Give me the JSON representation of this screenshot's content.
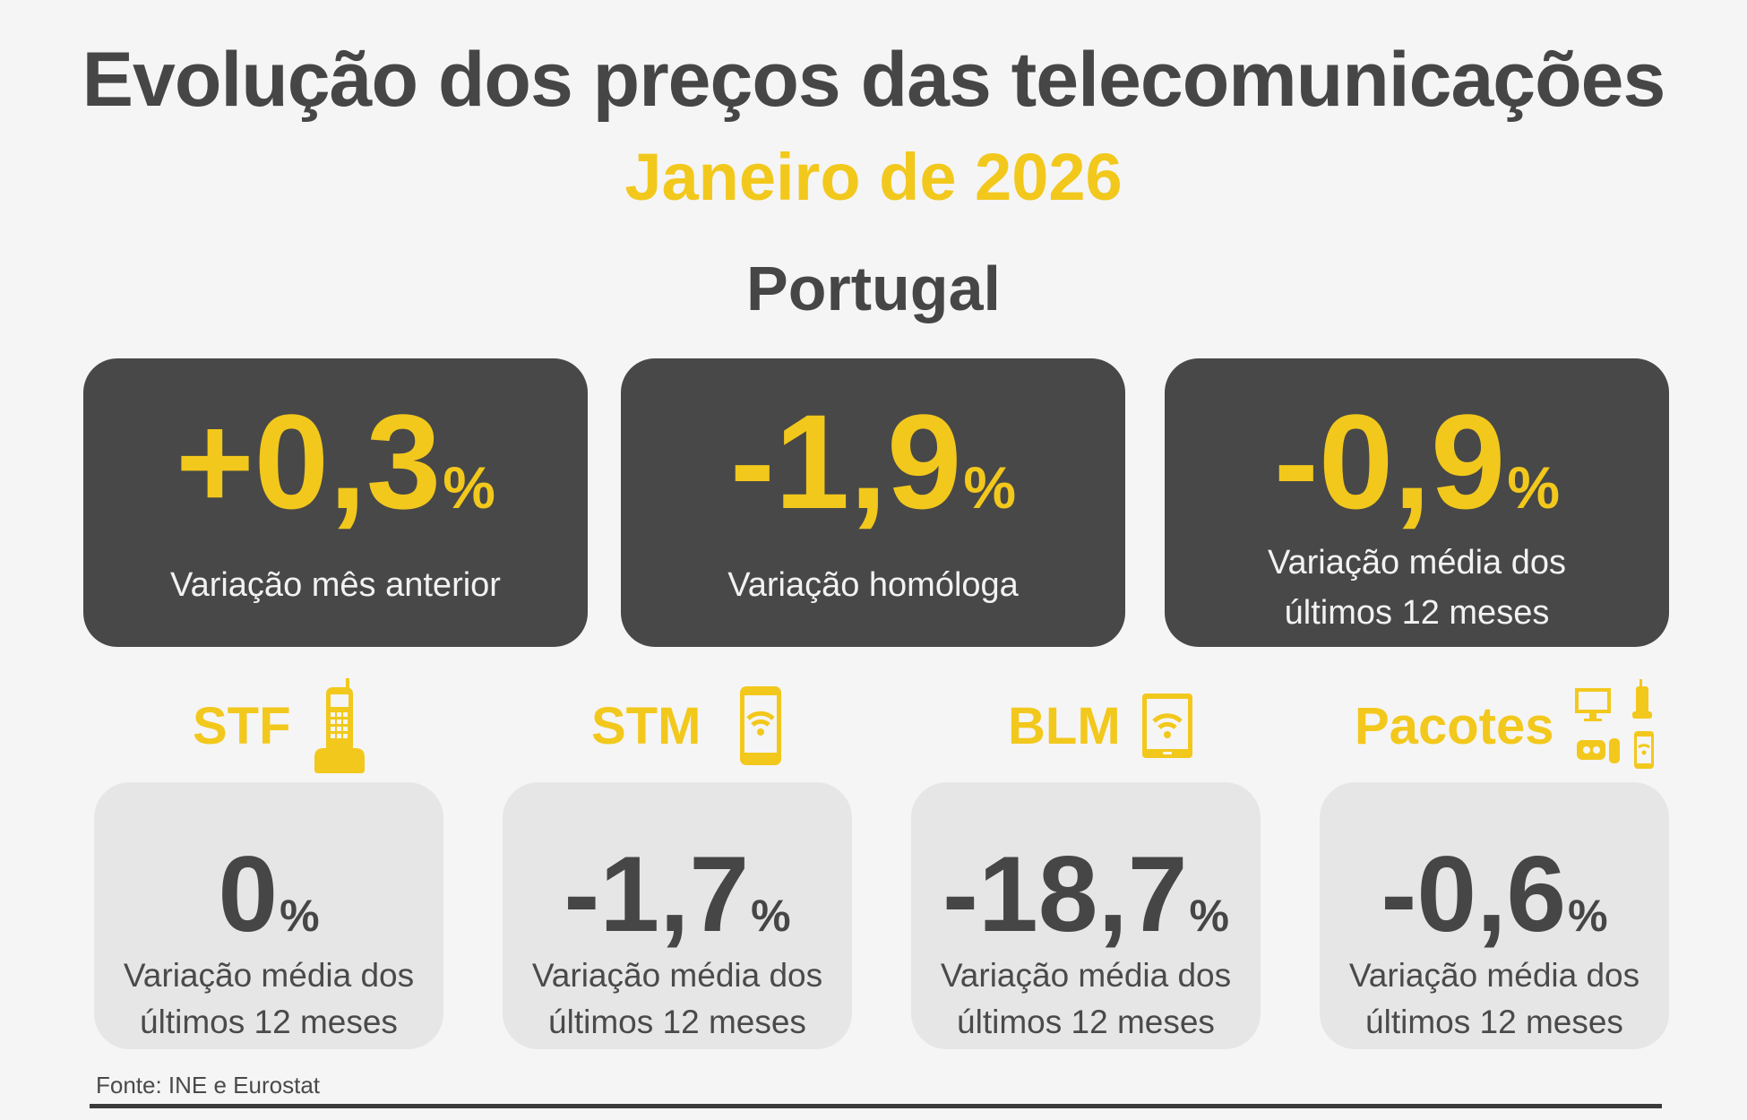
{
  "header": {
    "title": "Evolução dos preços das telecomunicações",
    "subtitle": "Janeiro de 2026",
    "region": "Portugal"
  },
  "summary_cards": [
    {
      "value": "+0,3",
      "unit": "%",
      "label": "Variação mês anterior"
    },
    {
      "value": "-1,9",
      "unit": "%",
      "label": "Variação homóloga"
    },
    {
      "value": "-0,9",
      "unit": "%",
      "label_line1": "Variação média dos",
      "label_line2": "últimos 12 meses"
    }
  ],
  "categories": [
    {
      "name": "STF",
      "icon": "cordless-phone-icon",
      "value": "0",
      "unit": "%",
      "label_line1": "Variação média dos",
      "label_line2": "últimos 12 meses"
    },
    {
      "name": "STM",
      "icon": "smartphone-wifi-icon",
      "value": "-1,7",
      "unit": "%",
      "label_line1": "Variação média dos",
      "label_line2": "últimos 12 meses"
    },
    {
      "name": "BLM",
      "icon": "tablet-wifi-icon",
      "value": "-18,7",
      "unit": "%",
      "label_line1": "Variação média dos",
      "label_line2": "últimos 12 meses"
    },
    {
      "name": "Pacotes",
      "icon": "bundle-devices-icon",
      "value": "-0,6",
      "unit": "%",
      "label_line1": "Variação média dos",
      "label_line2": "últimos 12 meses"
    }
  ],
  "footer": {
    "source": "Fonte: INE e Eurostat"
  },
  "colors": {
    "accent_yellow": "#f2c81c",
    "dark_gray": "#484848",
    "light_gray": "#e6e6e6",
    "background": "#f5f5f5"
  }
}
